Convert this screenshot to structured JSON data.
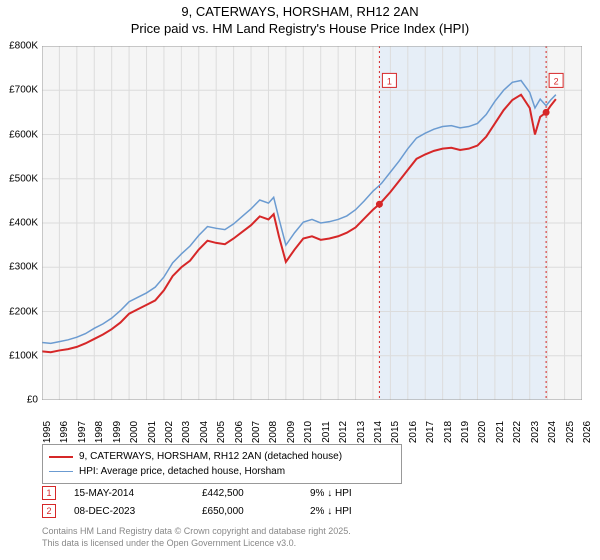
{
  "title": {
    "line1": "9, CATERWAYS, HORSHAM, RH12 2AN",
    "line2": "Price paid vs. HM Land Registry's House Price Index (HPI)"
  },
  "chart": {
    "type": "line",
    "background_color": "#f5f5f5",
    "grid_color": "#dcdcdc",
    "xlim": [
      1995,
      2026
    ],
    "ylim": [
      0,
      800000
    ],
    "yticks": [
      0,
      100000,
      200000,
      300000,
      400000,
      500000,
      600000,
      700000,
      800000
    ],
    "ytick_labels": [
      "£0",
      "£100K",
      "£200K",
      "£300K",
      "£400K",
      "£500K",
      "£600K",
      "£700K",
      "£800K"
    ],
    "xticks": [
      1995,
      1996,
      1997,
      1998,
      1999,
      2000,
      2001,
      2002,
      2003,
      2004,
      2005,
      2006,
      2007,
      2008,
      2009,
      2010,
      2011,
      2012,
      2013,
      2014,
      2015,
      2016,
      2017,
      2018,
      2019,
      2020,
      2021,
      2022,
      2023,
      2024,
      2025,
      2026
    ],
    "shaded_region": {
      "from": 2014.37,
      "to": 2023.94,
      "color": "#e6eef7"
    },
    "series": [
      {
        "name": "price_paid",
        "label": "9, CATERWAYS, HORSHAM, RH12 2AN (detached house)",
        "color": "#d62728",
        "line_width": 2,
        "data": [
          [
            1995,
            110000
          ],
          [
            1995.5,
            108000
          ],
          [
            1996,
            112000
          ],
          [
            1996.5,
            115000
          ],
          [
            1997,
            120000
          ],
          [
            1997.5,
            128000
          ],
          [
            1998,
            138000
          ],
          [
            1998.5,
            148000
          ],
          [
            1999,
            160000
          ],
          [
            1999.5,
            175000
          ],
          [
            2000,
            195000
          ],
          [
            2000.5,
            205000
          ],
          [
            2001,
            215000
          ],
          [
            2001.5,
            225000
          ],
          [
            2002,
            248000
          ],
          [
            2002.5,
            280000
          ],
          [
            2003,
            300000
          ],
          [
            2003.5,
            315000
          ],
          [
            2004,
            340000
          ],
          [
            2004.5,
            360000
          ],
          [
            2005,
            355000
          ],
          [
            2005.5,
            352000
          ],
          [
            2006,
            365000
          ],
          [
            2006.5,
            380000
          ],
          [
            2007,
            395000
          ],
          [
            2007.5,
            415000
          ],
          [
            2008,
            408000
          ],
          [
            2008.3,
            420000
          ],
          [
            2008.6,
            370000
          ],
          [
            2009,
            312000
          ],
          [
            2009.5,
            340000
          ],
          [
            2010,
            365000
          ],
          [
            2010.5,
            370000
          ],
          [
            2011,
            362000
          ],
          [
            2011.5,
            365000
          ],
          [
            2012,
            370000
          ],
          [
            2012.5,
            378000
          ],
          [
            2013,
            390000
          ],
          [
            2013.5,
            410000
          ],
          [
            2014,
            430000
          ],
          [
            2014.37,
            442500
          ],
          [
            2014.5,
            448000
          ],
          [
            2015,
            470000
          ],
          [
            2015.5,
            495000
          ],
          [
            2016,
            520000
          ],
          [
            2016.5,
            545000
          ],
          [
            2017,
            555000
          ],
          [
            2017.5,
            563000
          ],
          [
            2018,
            568000
          ],
          [
            2018.5,
            570000
          ],
          [
            2019,
            565000
          ],
          [
            2019.5,
            568000
          ],
          [
            2020,
            575000
          ],
          [
            2020.5,
            595000
          ],
          [
            2021,
            625000
          ],
          [
            2021.5,
            655000
          ],
          [
            2022,
            678000
          ],
          [
            2022.5,
            690000
          ],
          [
            2023,
            660000
          ],
          [
            2023.3,
            600000
          ],
          [
            2023.6,
            640000
          ],
          [
            2023.94,
            650000
          ],
          [
            2024.2,
            665000
          ],
          [
            2024.5,
            680000
          ]
        ]
      },
      {
        "name": "hpi",
        "label": "HPI: Average price, detached house, Horsham",
        "color": "#6b9bd1",
        "line_width": 1.5,
        "data": [
          [
            1995,
            130000
          ],
          [
            1995.5,
            128000
          ],
          [
            1996,
            132000
          ],
          [
            1996.5,
            136000
          ],
          [
            1997,
            142000
          ],
          [
            1997.5,
            150000
          ],
          [
            1998,
            162000
          ],
          [
            1998.5,
            172000
          ],
          [
            1999,
            185000
          ],
          [
            1999.5,
            202000
          ],
          [
            2000,
            222000
          ],
          [
            2000.5,
            232000
          ],
          [
            2001,
            242000
          ],
          [
            2001.5,
            255000
          ],
          [
            2002,
            278000
          ],
          [
            2002.5,
            310000
          ],
          [
            2003,
            330000
          ],
          [
            2003.5,
            348000
          ],
          [
            2004,
            372000
          ],
          [
            2004.5,
            392000
          ],
          [
            2005,
            388000
          ],
          [
            2005.5,
            385000
          ],
          [
            2006,
            398000
          ],
          [
            2006.5,
            415000
          ],
          [
            2007,
            432000
          ],
          [
            2007.5,
            452000
          ],
          [
            2008,
            445000
          ],
          [
            2008.3,
            458000
          ],
          [
            2008.6,
            410000
          ],
          [
            2009,
            350000
          ],
          [
            2009.5,
            378000
          ],
          [
            2010,
            402000
          ],
          [
            2010.5,
            408000
          ],
          [
            2011,
            400000
          ],
          [
            2011.5,
            403000
          ],
          [
            2012,
            408000
          ],
          [
            2012.5,
            416000
          ],
          [
            2013,
            430000
          ],
          [
            2013.5,
            450000
          ],
          [
            2014,
            472000
          ],
          [
            2014.37,
            485000
          ],
          [
            2014.5,
            490000
          ],
          [
            2015,
            515000
          ],
          [
            2015.5,
            540000
          ],
          [
            2016,
            568000
          ],
          [
            2016.5,
            592000
          ],
          [
            2017,
            603000
          ],
          [
            2017.5,
            612000
          ],
          [
            2018,
            618000
          ],
          [
            2018.5,
            620000
          ],
          [
            2019,
            615000
          ],
          [
            2019.5,
            618000
          ],
          [
            2020,
            625000
          ],
          [
            2020.5,
            645000
          ],
          [
            2021,
            675000
          ],
          [
            2021.5,
            700000
          ],
          [
            2022,
            718000
          ],
          [
            2022.5,
            722000
          ],
          [
            2023,
            695000
          ],
          [
            2023.3,
            660000
          ],
          [
            2023.6,
            680000
          ],
          [
            2023.94,
            665000
          ],
          [
            2024.2,
            678000
          ],
          [
            2024.5,
            690000
          ]
        ]
      }
    ],
    "sale_markers": [
      {
        "n": 1,
        "x": 2014.37,
        "y": 442500
      },
      {
        "n": 2,
        "x": 2023.94,
        "y": 650000
      }
    ],
    "marker_vline_color": "#d62728",
    "marker_box_border": "#d62728",
    "marker_box_text": "#d62728",
    "flag_y": 720000
  },
  "legend": {
    "rows": [
      {
        "color": "#d62728",
        "width": 2,
        "label": "9, CATERWAYS, HORSHAM, RH12 2AN (detached house)"
      },
      {
        "color": "#6b9bd1",
        "width": 1.5,
        "label": "HPI: Average price, detached house, Horsham"
      }
    ]
  },
  "marker_table": [
    {
      "n": "1",
      "date": "15-MAY-2014",
      "price": "£442,500",
      "pct": "9% ↓ HPI"
    },
    {
      "n": "2",
      "date": "08-DEC-2023",
      "price": "£650,000",
      "pct": "2% ↓ HPI"
    }
  ],
  "attribution": {
    "line1": "Contains HM Land Registry data © Crown copyright and database right 2025.",
    "line2": "This data is licensed under the Open Government Licence v3.0."
  }
}
